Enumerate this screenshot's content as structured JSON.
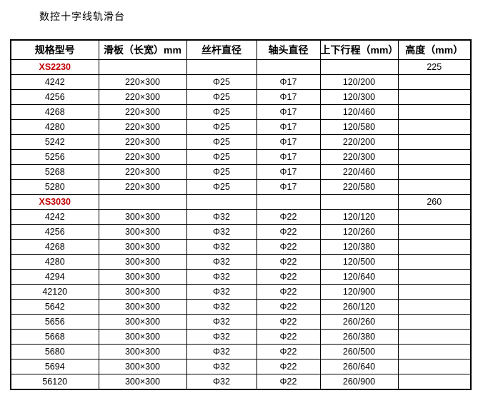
{
  "page": {
    "title": "数控十字线轨滑台"
  },
  "colors": {
    "series_model_red": "#c00000",
    "table_border": "#000000",
    "background": "#ffffff"
  },
  "table": {
    "headers": [
      "规格型号",
      "滑板（长宽）mm",
      "丝杆直径",
      "轴头直径",
      "上下行程（mm）",
      "高度（mm）"
    ],
    "field_order": [
      "model",
      "plate",
      "screw",
      "shaft",
      "stroke",
      "height"
    ],
    "rows": [
      {
        "model": "XS2230",
        "plate": "",
        "screw": "",
        "shaft": "",
        "stroke": "",
        "height": "225",
        "is_series": true
      },
      {
        "model": "4242",
        "plate": "220×300",
        "screw": "Φ25",
        "shaft": "Φ17",
        "stroke": "120/200",
        "height": "",
        "is_series": false
      },
      {
        "model": "4256",
        "plate": "220×300",
        "screw": "Φ25",
        "shaft": "Φ17",
        "stroke": "120/300",
        "height": "",
        "is_series": false
      },
      {
        "model": "4268",
        "plate": "220×300",
        "screw": "Φ25",
        "shaft": "Φ17",
        "stroke": "120/460",
        "height": "",
        "is_series": false
      },
      {
        "model": "4280",
        "plate": "220×300",
        "screw": "Φ25",
        "shaft": "Φ17",
        "stroke": "120/580",
        "height": "",
        "is_series": false
      },
      {
        "model": "5242",
        "plate": "220×300",
        "screw": "Φ25",
        "shaft": "Φ17",
        "stroke": "220/200",
        "height": "",
        "is_series": false
      },
      {
        "model": "5256",
        "plate": "220×300",
        "screw": "Φ25",
        "shaft": "Φ17",
        "stroke": "220/300",
        "height": "",
        "is_series": false
      },
      {
        "model": "5268",
        "plate": "220×300",
        "screw": "Φ25",
        "shaft": "Φ17",
        "stroke": "220/460",
        "height": "",
        "is_series": false
      },
      {
        "model": "5280",
        "plate": "220×300",
        "screw": "Φ25",
        "shaft": "Φ17",
        "stroke": "220/580",
        "height": "",
        "is_series": false
      },
      {
        "model": "XS3030",
        "plate": "",
        "screw": "",
        "shaft": "",
        "stroke": "",
        "height": "260",
        "is_series": true
      },
      {
        "model": "4242",
        "plate": "300×300",
        "screw": "Φ32",
        "shaft": "Φ22",
        "stroke": "120/120",
        "height": "",
        "is_series": false
      },
      {
        "model": "4256",
        "plate": "300×300",
        "screw": "Φ32",
        "shaft": "Φ22",
        "stroke": "120/260",
        "height": "",
        "is_series": false
      },
      {
        "model": "4268",
        "plate": "300×300",
        "screw": "Φ32",
        "shaft": "Φ22",
        "stroke": "120/380",
        "height": "",
        "is_series": false
      },
      {
        "model": "4280",
        "plate": "300×300",
        "screw": "Φ32",
        "shaft": "Φ22",
        "stroke": "120/500",
        "height": "",
        "is_series": false
      },
      {
        "model": "4294",
        "plate": "300×300",
        "screw": "Φ32",
        "shaft": "Φ22",
        "stroke": "120/640",
        "height": "",
        "is_series": false
      },
      {
        "model": "42120",
        "plate": "300×300",
        "screw": "Φ32",
        "shaft": "Φ22",
        "stroke": "120/900",
        "height": "",
        "is_series": false
      },
      {
        "model": "5642",
        "plate": "300×300",
        "screw": "Φ32",
        "shaft": "Φ22",
        "stroke": "260/120",
        "height": "",
        "is_series": false
      },
      {
        "model": "5656",
        "plate": "300×300",
        "screw": "Φ32",
        "shaft": "Φ22",
        "stroke": "260/260",
        "height": "",
        "is_series": false
      },
      {
        "model": "5668",
        "plate": "300×300",
        "screw": "Φ32",
        "shaft": "Φ22",
        "stroke": "260/380",
        "height": "",
        "is_series": false
      },
      {
        "model": "5680",
        "plate": "300×300",
        "screw": "Φ32",
        "shaft": "Φ22",
        "stroke": "260/500",
        "height": "",
        "is_series": false
      },
      {
        "model": "5694",
        "plate": "300×300",
        "screw": "Φ32",
        "shaft": "Φ22",
        "stroke": "260/640",
        "height": "",
        "is_series": false
      },
      {
        "model": "56120",
        "plate": "300×300",
        "screw": "Φ32",
        "shaft": "Φ22",
        "stroke": "260/900",
        "height": "",
        "is_series": false
      }
    ]
  }
}
